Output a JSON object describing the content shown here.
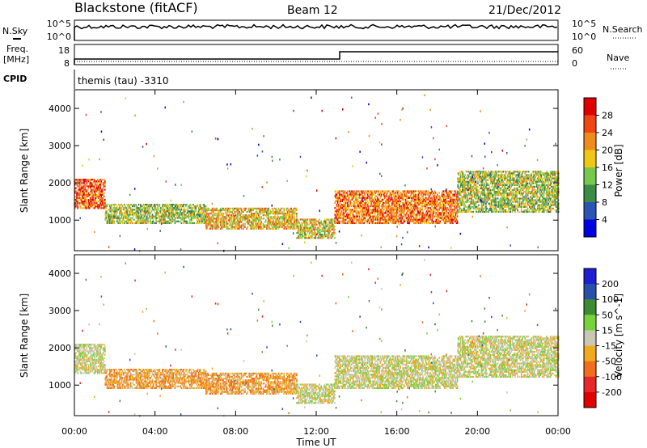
{
  "header": {
    "station": "Blackstone (fitACF)",
    "beam": "Beam 12",
    "date": "21/Dec/2012"
  },
  "left_labels": {
    "nsky": "N.Sky",
    "freq_line1": "Freq.",
    "freq_line2": "[MHz]",
    "cpid": "CPID"
  },
  "right_labels": {
    "nsearch": "N.Search",
    "nave": "Nave"
  },
  "noise_panel": {
    "tick_top": "10^5",
    "tick_bottom": "10^0"
  },
  "freq_panel": {
    "left_ticks": [
      "18",
      "8"
    ],
    "right_ticks": [
      "60",
      "0"
    ]
  },
  "cpid_text": "themis (tau) -3310",
  "power_colorbar": {
    "title": "Power [dB]",
    "ticks": [
      "28",
      "24",
      "20",
      "16",
      "12",
      "8",
      "4"
    ],
    "colors": [
      "#0000e0",
      "#2a55b4",
      "#3c8c46",
      "#78c850",
      "#f0c814",
      "#f08c1e",
      "#f04614",
      "#e00000"
    ]
  },
  "velocity_colorbar": {
    "title": "Velocity [m s^-1]",
    "ticks": [
      "200",
      "100",
      "50",
      "15",
      "-15",
      "-50",
      "-100",
      "-200"
    ],
    "colors": [
      "#1e1ed2",
      "#2850aa",
      "#3c8c32",
      "#78d23c",
      "#c8c8b4",
      "#f0aa1e",
      "#f06e1e",
      "#e82828",
      "#e00000"
    ]
  },
  "chart_data": [
    {
      "type": "heatmap",
      "title": "Power",
      "xlabel": "Time UT",
      "ylabel": "Slant Range [km]",
      "x_ticks": [
        "00:00",
        "04:00",
        "08:00",
        "12:00",
        "16:00",
        "20:00",
        "00:00"
      ],
      "y_ticks": [
        "1000",
        "2000",
        "3000",
        "4000"
      ],
      "xlim_hours": [
        0,
        24
      ],
      "ylim_km": [
        180,
        4500
      ],
      "colorbar_label": "Power [dB]",
      "colorbar_range": [
        0,
        30
      ],
      "echo_bands": [
        {
          "t_start": 0.0,
          "t_end": 1.5,
          "range_km": [
            1300,
            2100
          ],
          "value": 24
        },
        {
          "t_start": 1.5,
          "t_end": 6.5,
          "range_km": [
            900,
            1400
          ],
          "value": 14
        },
        {
          "t_start": 6.5,
          "t_end": 11.0,
          "range_km": [
            750,
            1300
          ],
          "value": 18
        },
        {
          "t_start": 11.0,
          "t_end": 12.9,
          "range_km": [
            500,
            1000
          ],
          "value": 16
        },
        {
          "t_start": 12.9,
          "t_end": 19.0,
          "range_km": [
            900,
            1800
          ],
          "value": 22
        },
        {
          "t_start": 19.0,
          "t_end": 24.0,
          "range_km": [
            1200,
            2300
          ],
          "value": 14
        }
      ]
    },
    {
      "type": "heatmap",
      "title": "Velocity",
      "xlabel": "Time UT",
      "ylabel": "Slant Range [km]",
      "x_ticks": [
        "00:00",
        "04:00",
        "08:00",
        "12:00",
        "16:00",
        "20:00",
        "00:00"
      ],
      "y_ticks": [
        "1000",
        "2000",
        "3000",
        "4000"
      ],
      "xlim_hours": [
        0,
        24
      ],
      "ylim_km": [
        180,
        4500
      ],
      "colorbar_label": "Velocity [m s^-1]",
      "colorbar_range": [
        -200,
        200
      ],
      "echo_bands": [
        {
          "t_start": 0.0,
          "t_end": 1.5,
          "range_km": [
            1300,
            2100
          ],
          "value": 0
        },
        {
          "t_start": 1.5,
          "t_end": 6.5,
          "range_km": [
            900,
            1400
          ],
          "value": -40
        },
        {
          "t_start": 6.5,
          "t_end": 11.0,
          "range_km": [
            750,
            1300
          ],
          "value": -40
        },
        {
          "t_start": 11.0,
          "t_end": 12.9,
          "range_km": [
            500,
            1000
          ],
          "value": 0
        },
        {
          "t_start": 12.9,
          "t_end": 19.0,
          "range_km": [
            900,
            1800
          ],
          "value": 0
        },
        {
          "t_start": 19.0,
          "t_end": 24.0,
          "range_km": [
            1200,
            2300
          ],
          "value": 0
        }
      ]
    }
  ]
}
